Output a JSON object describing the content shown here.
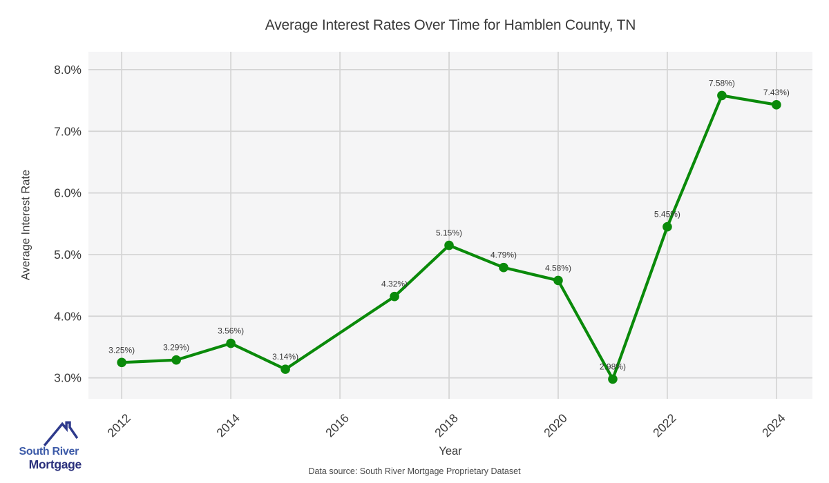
{
  "title": "Average Interest Rates Over Time for Hamblen County, TN",
  "footer": {
    "source": "Data source: South River Mortgage Proprietary Dataset"
  },
  "logo": {
    "line1": "South River",
    "line2": "Mortgage",
    "line1_color": "#3c5aa8",
    "line2_color": "#2a307c",
    "roof_color": "#2e3a8c"
  },
  "chart_data": {
    "type": "line",
    "title": "Average Interest Rates Over Time for Hamblen County, TN",
    "xlabel": "Year",
    "ylabel": "Average Interest Rate",
    "x": [
      2012,
      2013,
      2014,
      2015,
      2017,
      2018,
      2019,
      2020,
      2021,
      2022,
      2023,
      2024
    ],
    "y": [
      3.25,
      3.29,
      3.56,
      3.14,
      4.32,
      5.15,
      4.79,
      4.58,
      2.98,
      5.45,
      7.58,
      7.43
    ],
    "point_labels": [
      "3.25%)",
      "3.29%)",
      "3.56%)",
      "3.14%)",
      "4.32%)",
      "5.15%)",
      "4.79%)",
      "4.58%)",
      "2.98%)",
      "5.45%)",
      "7.58%)",
      "7.43%)"
    ],
    "x_tick_values": [
      2012,
      2014,
      2016,
      2018,
      2020,
      2022,
      2024
    ],
    "x_tick_labels": [
      "2012",
      "2014",
      "2016",
      "2018",
      "2020",
      "2022",
      "2024"
    ],
    "y_tick_values": [
      3,
      4,
      5,
      6,
      7,
      8
    ],
    "y_tick_labels": [
      "3.0%",
      "4.0%",
      "5.0%",
      "6.0%",
      "7.0%",
      "8.0%"
    ],
    "xlim": [
      2011.39,
      2024.66
    ],
    "ylim": [
      2.66,
      8.29
    ],
    "grid": true,
    "legend": false,
    "line_color": "#0a8a0a",
    "marker_color": "#0a8a0a",
    "plot_bg": "#f5f5f6",
    "grid_color": "#d4d4d4",
    "tick_color": "#3a3a3a",
    "point_label_color": "#3a3a3a"
  }
}
